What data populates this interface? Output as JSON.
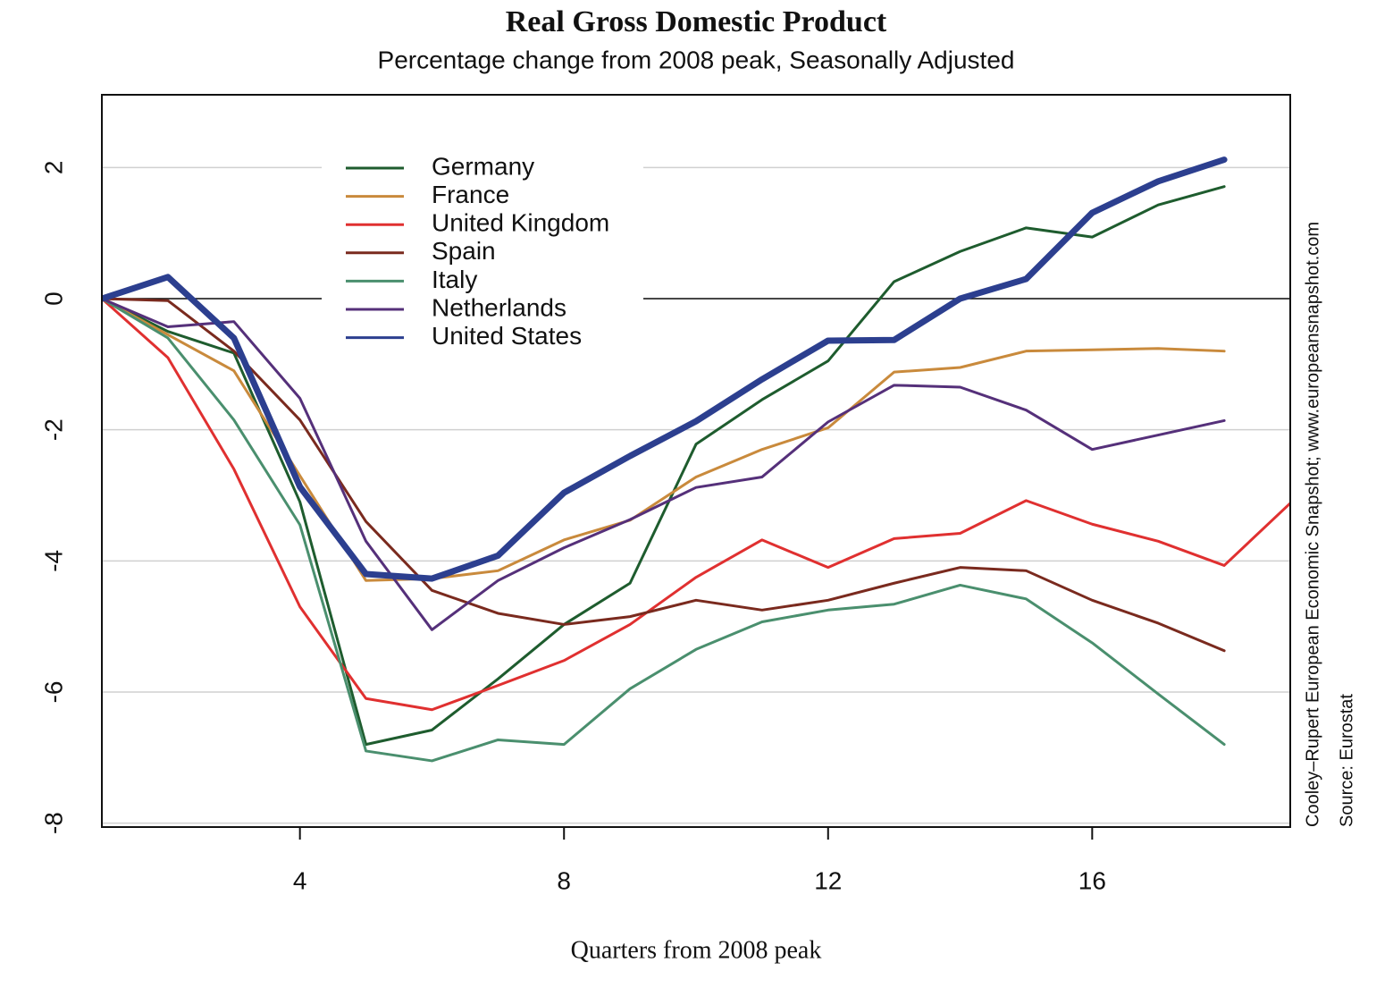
{
  "chart_data": {
    "type": "line",
    "title": "Real Gross Domestic Product",
    "subtitle": "Percentage change from 2008 peak, Seasonally Adjusted",
    "x_label": "Quarters from 2008 peak",
    "side_notes": [
      "Cooley–Rupert European Economic Snapshot; www.europeansnapshot.com",
      "Source: Eurostat"
    ],
    "x": [
      1,
      2,
      3,
      4,
      5,
      6,
      7,
      8,
      9,
      10,
      11,
      12,
      13,
      14,
      15,
      16,
      17,
      18,
      19
    ],
    "series": [
      {
        "name": "Germany",
        "color": "#1e5c2e",
        "width": 3,
        "values": [
          0,
          -0.5,
          -0.83,
          -3.1,
          -6.8,
          -6.58,
          -5.8,
          -4.97,
          -4.34,
          -2.22,
          -1.54,
          -0.95,
          0.26,
          0.72,
          1.08,
          0.94,
          1.43,
          1.71,
          null
        ]
      },
      {
        "name": "France",
        "color": "#c98a3c",
        "width": 3,
        "values": [
          0,
          -0.55,
          -1.1,
          -2.7,
          -4.3,
          -4.27,
          -4.15,
          -3.68,
          -3.38,
          -2.72,
          -2.3,
          -1.97,
          -1.12,
          -1.05,
          -0.8,
          -0.78,
          -0.76,
          -0.8,
          null
        ]
      },
      {
        "name": "United Kingdom",
        "color": "#e03030",
        "width": 3,
        "values": [
          0,
          -0.9,
          -2.6,
          -4.7,
          -6.1,
          -6.27,
          -5.9,
          -5.52,
          -4.97,
          -4.25,
          -3.68,
          -4.1,
          -3.66,
          -3.58,
          -3.08,
          -3.44,
          -3.7,
          -4.07,
          -3.12
        ]
      },
      {
        "name": "Spain",
        "color": "#7a2a1e",
        "width": 3,
        "values": [
          0,
          -0.03,
          -0.8,
          -1.85,
          -3.4,
          -4.45,
          -4.8,
          -4.97,
          -4.85,
          -4.6,
          -4.75,
          -4.6,
          -4.34,
          -4.1,
          -4.15,
          -4.6,
          -4.95,
          -5.37,
          null
        ]
      },
      {
        "name": "Italy",
        "color": "#4a8f6e",
        "width": 3,
        "values": [
          0,
          -0.6,
          -1.85,
          -3.45,
          -6.9,
          -7.05,
          -6.73,
          -6.8,
          -5.95,
          -5.35,
          -4.93,
          -4.75,
          -4.66,
          -4.37,
          -4.58,
          -5.25,
          -6.03,
          -6.8,
          null
        ]
      },
      {
        "name": "Netherlands",
        "color": "#55307a",
        "width": 3,
        "values": [
          0,
          -0.43,
          -0.35,
          -1.52,
          -3.7,
          -5.05,
          -4.3,
          -3.8,
          -3.37,
          -2.88,
          -2.72,
          -1.88,
          -1.32,
          -1.35,
          -1.7,
          -2.3,
          -2.08,
          -1.86,
          null
        ]
      },
      {
        "name": "United States",
        "color": "#2c3f8f",
        "width": 7,
        "values": [
          0,
          0.33,
          -0.6,
          -2.87,
          -4.2,
          -4.27,
          -3.92,
          -2.96,
          -2.4,
          -1.87,
          -1.23,
          -0.64,
          -0.63,
          0,
          0.3,
          1.31,
          1.79,
          2.12,
          null
        ]
      }
    ],
    "xlim": [
      1,
      19
    ],
    "ylim": [
      -8.06,
      3.11
    ],
    "xticks": [
      4,
      8,
      12,
      16
    ],
    "yticks": [
      -8,
      -6,
      -4,
      -2,
      0,
      2
    ],
    "grid": true,
    "hline": 0,
    "legend": "top-left"
  }
}
